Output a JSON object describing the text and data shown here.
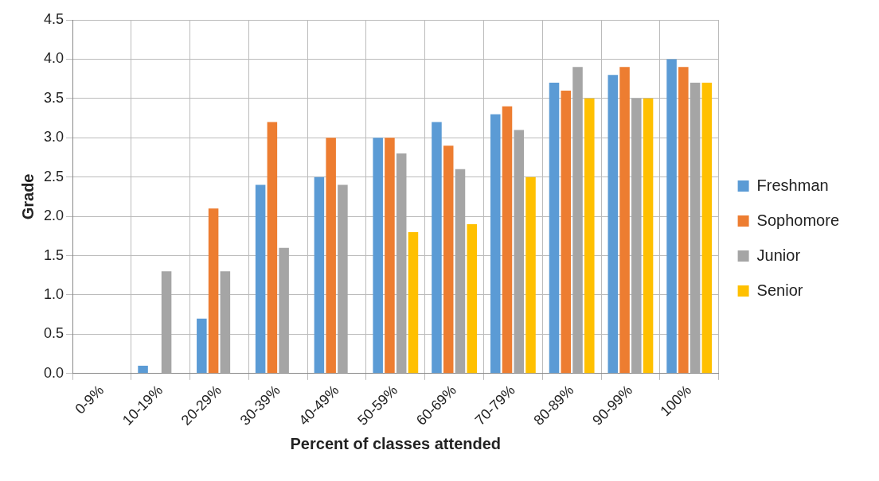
{
  "chart_data": {
    "type": "bar",
    "xlabel": "Percent of classes attended",
    "ylabel": "Grade",
    "categories": [
      "0-9%",
      "10-19%",
      "20-29%",
      "30-39%",
      "40-49%",
      "50-59%",
      "60-69%",
      "70-79%",
      "80-89%",
      "90-99%",
      "100%"
    ],
    "series": [
      {
        "name": "Freshman",
        "color": "#5b9bd5",
        "values": [
          0,
          0.1,
          0.7,
          2.4,
          2.5,
          3.0,
          3.2,
          3.3,
          3.7,
          3.8,
          4.0
        ]
      },
      {
        "name": "Sophomore",
        "color": "#ed7d31",
        "values": [
          0,
          0,
          2.1,
          3.2,
          3.0,
          3.0,
          2.9,
          3.4,
          3.6,
          3.9,
          3.9
        ]
      },
      {
        "name": "Junior",
        "color": "#a5a5a5",
        "values": [
          0,
          1.3,
          1.3,
          1.6,
          2.4,
          2.8,
          2.6,
          3.1,
          3.9,
          3.5,
          3.7
        ]
      },
      {
        "name": "Senior",
        "color": "#ffc000",
        "values": [
          0,
          0,
          0,
          0,
          0,
          1.8,
          1.9,
          2.5,
          3.5,
          3.5,
          3.7
        ]
      }
    ],
    "ylim": [
      0,
      4.5
    ],
    "yticks": [
      {
        "value": 0,
        "label": "0.0"
      },
      {
        "value": 0.5,
        "label": "0.5"
      },
      {
        "value": 1,
        "label": "1.0"
      },
      {
        "value": 1.5,
        "label": "1.5"
      },
      {
        "value": 2,
        "label": "2.0"
      },
      {
        "value": 2.5,
        "label": "2.5"
      },
      {
        "value": 3,
        "label": "3.0"
      },
      {
        "value": 3.5,
        "label": "3.5"
      },
      {
        "value": 4,
        "label": "4.0"
      },
      {
        "value": 4.5,
        "label": "4.5"
      }
    ],
    "grid": true,
    "legend": "right"
  }
}
